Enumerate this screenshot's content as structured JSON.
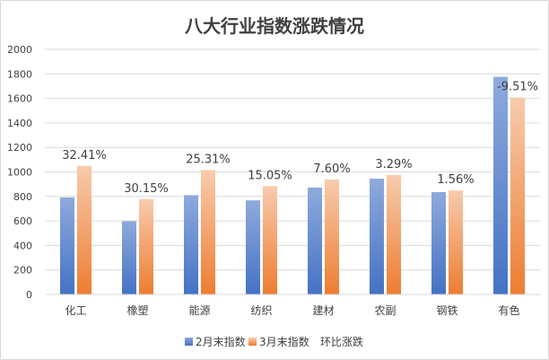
{
  "chart_data": {
    "type": "bar",
    "title": "八大行业指数涨跌情况",
    "categories": [
      "化工",
      "橡塑",
      "能源",
      "纺织",
      "建材",
      "农副",
      "钢铁",
      "有色"
    ],
    "series": [
      {
        "name": "2月末指数",
        "values": [
          792,
          598,
          810,
          768,
          872,
          945,
          836,
          1776
        ]
      },
      {
        "name": "3月末指数",
        "values": [
          1049,
          778,
          1015,
          884,
          938,
          976,
          849,
          1607
        ]
      },
      {
        "name": "环比涨跌",
        "values": [
          32.41,
          30.15,
          25.31,
          15.05,
          7.6,
          3.29,
          1.56,
          -9.51
        ]
      }
    ],
    "data_labels": [
      "32.41%",
      "30.15%",
      "25.31%",
      "15.05%",
      "7.60%",
      "3.29%",
      "1.56%",
      "-9.51%"
    ],
    "yticks": [
      "0",
      "200",
      "400",
      "600",
      "800",
      "1000",
      "1200",
      "1400",
      "1600",
      "1800",
      "2000"
    ],
    "ylim": [
      0,
      2000
    ],
    "grid": true,
    "legend_position": "bottom",
    "colors": {
      "series1_top": "#8FAADC",
      "series1_bottom": "#4472C4",
      "series2_top": "#F8CBAD",
      "series2_bottom": "#ED7D31",
      "grid": "#d9d9d9",
      "text": "#404040",
      "title": "#404040"
    }
  }
}
